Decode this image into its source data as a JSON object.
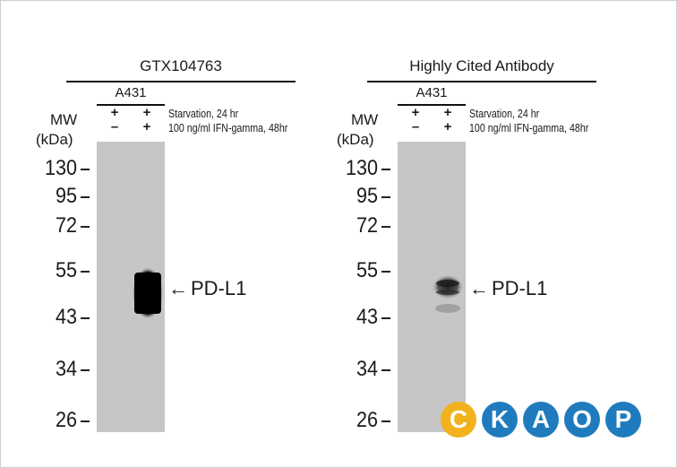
{
  "panels": [
    {
      "antibody": "GTX104763",
      "cell_line": "A431",
      "mw_label_line1": "MW",
      "mw_label_line2": "(kDa)",
      "row1_signs": [
        "+",
        "+"
      ],
      "row2_signs": [
        "–",
        "+"
      ],
      "condition1": "Starvation, 24 hr",
      "condition2": "100 ng/ml IFN-gamma, 48hr",
      "markers": [
        "130",
        "95",
        "72",
        "55",
        "43",
        "34",
        "26"
      ],
      "band_label": "PD-L1"
    },
    {
      "antibody": "Highly Cited Antibody",
      "cell_line": "A431",
      "mw_label_line1": "MW",
      "mw_label_line2": "(kDa)",
      "row1_signs": [
        "+",
        "+"
      ],
      "row2_signs": [
        "–",
        "+"
      ],
      "condition1": "Starvation, 24 hr",
      "condition2": "100 ng/ml IFN-gamma, 48hr",
      "markers": [
        "130",
        "95",
        "72",
        "55",
        "43",
        "34",
        "26"
      ],
      "band_label": "PD-L1"
    }
  ],
  "logo": {
    "letters": [
      "C",
      "K",
      "A",
      "O",
      "P"
    ],
    "colors": [
      "#f2b21b",
      "#1f7bbd",
      "#1f7bbd",
      "#1f7bbd",
      "#1f7bbd"
    ]
  }
}
